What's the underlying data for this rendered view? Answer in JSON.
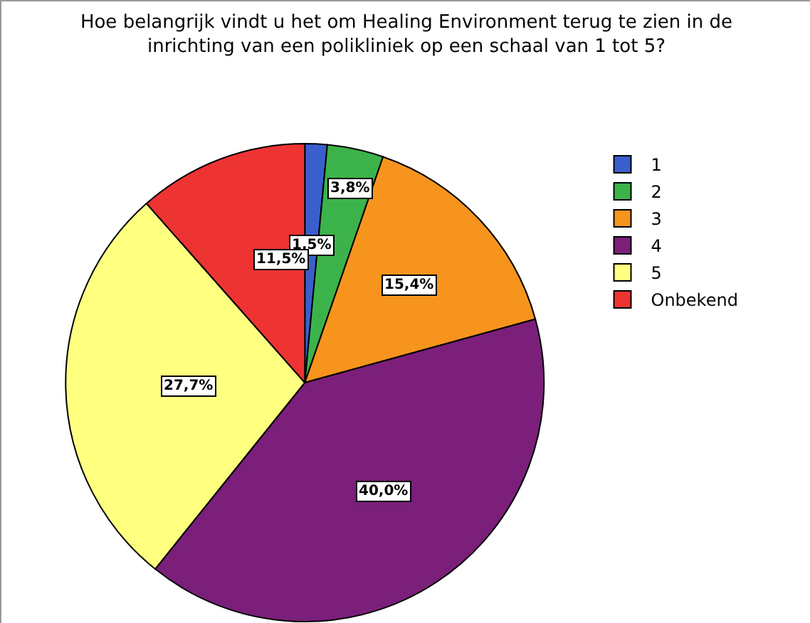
{
  "chart_data": {
    "type": "pie",
    "title": "Hoe belangrijk vindt u het om Healing Environment terug te zien in de inrichting van een polikliniek op een schaal van 1 tot 5?",
    "categories": [
      "1",
      "2",
      "3",
      "4",
      "5",
      "Onbekend"
    ],
    "values": [
      1.5,
      3.8,
      15.4,
      40.0,
      27.7,
      11.5
    ],
    "value_labels": [
      "1,5%",
      "3,8%",
      "15,4%",
      "40,0%",
      "27,7%",
      "11,5%"
    ],
    "colors": [
      "#3a5fcd",
      "#3cb34a",
      "#f7941d",
      "#7b1f7a",
      "#ffff80",
      "#ee3333"
    ],
    "legend": "top right"
  }
}
